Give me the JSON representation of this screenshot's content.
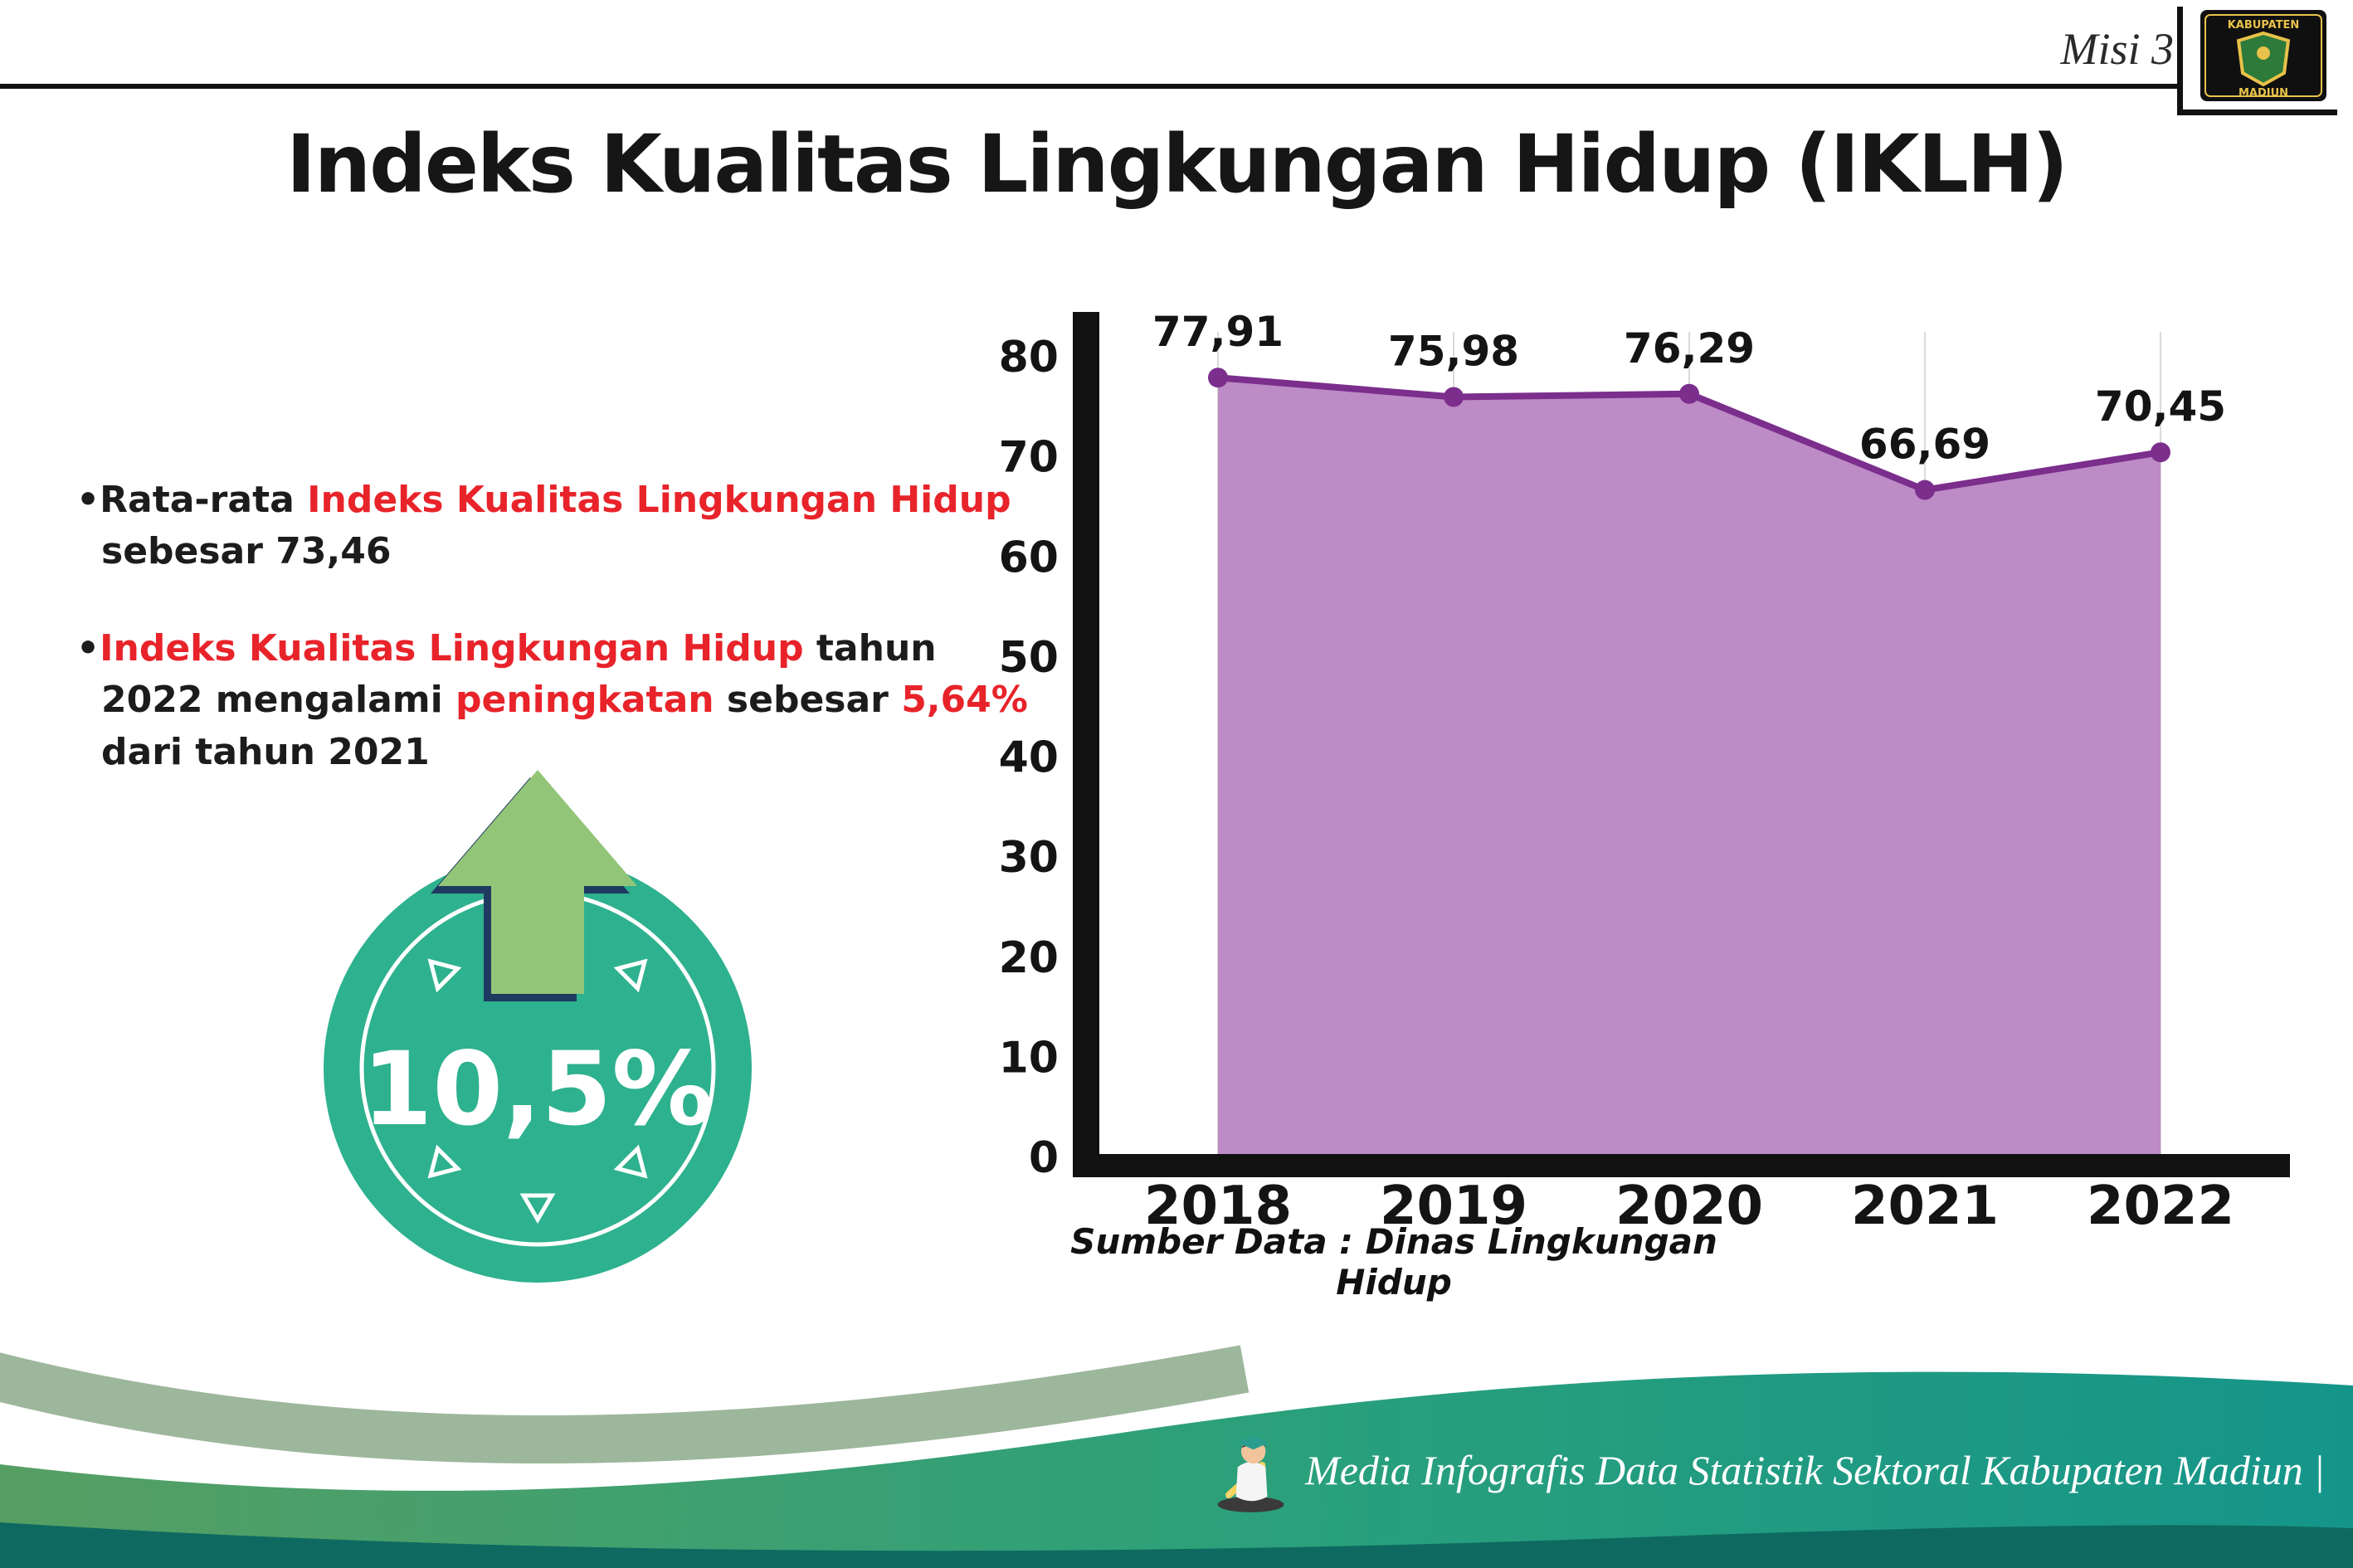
{
  "page": {
    "misi_label": "Misi 3",
    "title": "Indeks Kualitas Lingkungan Hidup (IKLH)"
  },
  "logo": {
    "name": "Lambang Kabupaten Madiun",
    "top_text": "KABUPATEN",
    "bottom_text": "MADIUN"
  },
  "bullets": {
    "b1": {
      "marker": "•",
      "p1": "Rata-rata ",
      "p2": "Indeks Kualitas Lingkungan Hidup",
      "p3": " sebesar 73,46"
    },
    "b2": {
      "marker": "•",
      "p1": "Indeks Kualitas Lingkungan Hidup",
      "p2": " tahun 2022 mengalami ",
      "p3": "peningkatan",
      "p4": " sebesar ",
      "p5": "5,64%",
      "p6": " dari tahun 2021"
    }
  },
  "badge": {
    "value": "10,5%"
  },
  "chart_data": {
    "type": "area",
    "title": "Indeks Kualitas Lingkungan Hidup (IKLH)",
    "categories": [
      "2018",
      "2019",
      "2020",
      "2021",
      "2022"
    ],
    "values": [
      77.91,
      75.98,
      76.29,
      66.69,
      70.45
    ],
    "point_labels": [
      "77,91",
      "75,98",
      "76,29",
      "66,69",
      "70,45"
    ],
    "ylim": [
      0,
      80
    ],
    "yticks": [
      0,
      10,
      20,
      30,
      40,
      50,
      60,
      70,
      80
    ],
    "grid": "vertical-light",
    "legend": "none",
    "fill_color": "#bd8bc6",
    "line_color": "#7b2e8c",
    "axis_color": "#111111",
    "source_label": "Sumber Data : Dinas Lingkungan Hidup"
  },
  "footer": {
    "text": "Media Infografis Data Statistik Sektoral Kabupaten Madiun |"
  },
  "colors": {
    "accent_red": "#e8232a",
    "badge_teal": "#2eb18f",
    "arrow_green": "#93c578",
    "arrow_outline_navy": "#1f3a60",
    "footer_green": "#569f63",
    "footer_teal": "#15958a",
    "footer_dark": "#0e6a60"
  }
}
